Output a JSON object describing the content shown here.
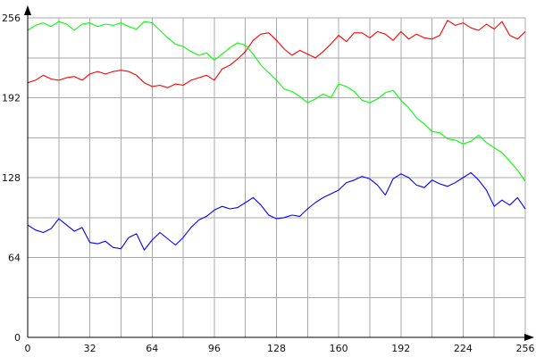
{
  "chart_data": {
    "type": "line",
    "title": "",
    "xlabel": "",
    "ylabel": "",
    "xlim": [
      0,
      256
    ],
    "ylim": [
      0,
      256
    ],
    "x_ticks": [
      "0",
      "32",
      "64",
      "96",
      "128",
      "160",
      "192",
      "224",
      "256"
    ],
    "y_ticks": [
      "0",
      "64",
      "128",
      "192",
      "256"
    ],
    "x_grid_values": [
      0,
      16,
      32,
      48,
      64,
      80,
      96,
      112,
      128,
      144,
      160,
      176,
      192,
      208,
      224,
      240,
      256
    ],
    "y_grid_values": [
      0,
      32,
      64,
      96,
      128,
      160,
      192,
      224,
      256
    ],
    "grid": true,
    "legend": "none",
    "series": [
      {
        "color": "#ff0000",
        "x": [
          0,
          4,
          8,
          12,
          16,
          20,
          24,
          28,
          32,
          36,
          40,
          44,
          48,
          52,
          56,
          60,
          64,
          68,
          72,
          76,
          80,
          84,
          88,
          92,
          96,
          100,
          104,
          108,
          112,
          116,
          120,
          124,
          128,
          132,
          136,
          140,
          144,
          148,
          152,
          156,
          160,
          164,
          168,
          172,
          176,
          180,
          184,
          188,
          192,
          196,
          200,
          204,
          208,
          212,
          216,
          220,
          224,
          228,
          232,
          236,
          240,
          244,
          248,
          252,
          256
        ],
        "y": [
          204,
          206,
          210,
          207,
          206,
          208,
          209,
          206,
          211,
          213,
          211,
          213,
          214,
          213,
          210,
          204,
          201,
          202,
          200,
          203,
          202,
          206,
          208,
          210,
          206,
          215,
          218,
          223,
          229,
          238,
          243,
          244,
          238,
          231,
          226,
          230,
          227,
          224,
          229,
          235,
          242,
          237,
          244,
          244,
          240,
          245,
          243,
          238,
          245,
          239,
          243,
          240,
          239,
          242,
          254,
          250,
          252,
          248,
          246,
          251,
          247,
          253,
          242,
          239,
          245
        ]
      },
      {
        "color": "#00ff00",
        "x": [
          0,
          4,
          8,
          12,
          16,
          20,
          24,
          28,
          32,
          36,
          40,
          44,
          48,
          52,
          56,
          60,
          64,
          68,
          72,
          76,
          80,
          84,
          88,
          92,
          96,
          100,
          104,
          108,
          112,
          116,
          120,
          124,
          128,
          132,
          136,
          140,
          144,
          148,
          152,
          156,
          160,
          164,
          168,
          172,
          176,
          180,
          184,
          188,
          192,
          196,
          200,
          204,
          208,
          212,
          216,
          220,
          224,
          228,
          232,
          236,
          240,
          244,
          248,
          252,
          256
        ],
        "y": [
          246,
          250,
          252,
          249,
          253,
          251,
          246,
          251,
          252,
          249,
          251,
          250,
          252,
          249,
          247,
          253,
          252,
          246,
          240,
          235,
          233,
          229,
          226,
          228,
          222,
          227,
          232,
          236,
          234,
          227,
          218,
          212,
          206,
          199,
          197,
          193,
          188,
          191,
          195,
          192,
          203,
          201,
          197,
          190,
          188,
          191,
          196,
          198,
          190,
          184,
          176,
          171,
          165,
          164,
          159,
          158,
          155,
          157,
          162,
          156,
          152,
          148,
          141,
          134,
          125
        ]
      },
      {
        "color": "#0000ff",
        "x": [
          0,
          4,
          8,
          12,
          16,
          20,
          24,
          28,
          32,
          36,
          40,
          44,
          48,
          52,
          56,
          60,
          64,
          68,
          72,
          76,
          80,
          84,
          88,
          92,
          96,
          100,
          104,
          108,
          112,
          116,
          120,
          124,
          128,
          132,
          136,
          140,
          144,
          148,
          152,
          156,
          160,
          164,
          168,
          172,
          176,
          180,
          184,
          188,
          192,
          196,
          200,
          204,
          208,
          212,
          216,
          220,
          224,
          228,
          232,
          236,
          240,
          244,
          248,
          252,
          256
        ],
        "y": [
          90,
          86,
          84,
          87,
          95,
          90,
          85,
          88,
          76,
          75,
          77,
          72,
          71,
          80,
          83,
          70,
          78,
          84,
          79,
          74,
          80,
          88,
          94,
          97,
          102,
          105,
          103,
          104,
          108,
          112,
          106,
          98,
          95,
          96,
          98,
          97,
          103,
          108,
          112,
          115,
          118,
          124,
          126,
          129,
          127,
          122,
          114,
          127,
          131,
          128,
          122,
          120,
          126,
          123,
          121,
          124,
          128,
          132,
          126,
          118,
          105,
          110,
          106,
          112,
          103
        ]
      }
    ]
  }
}
